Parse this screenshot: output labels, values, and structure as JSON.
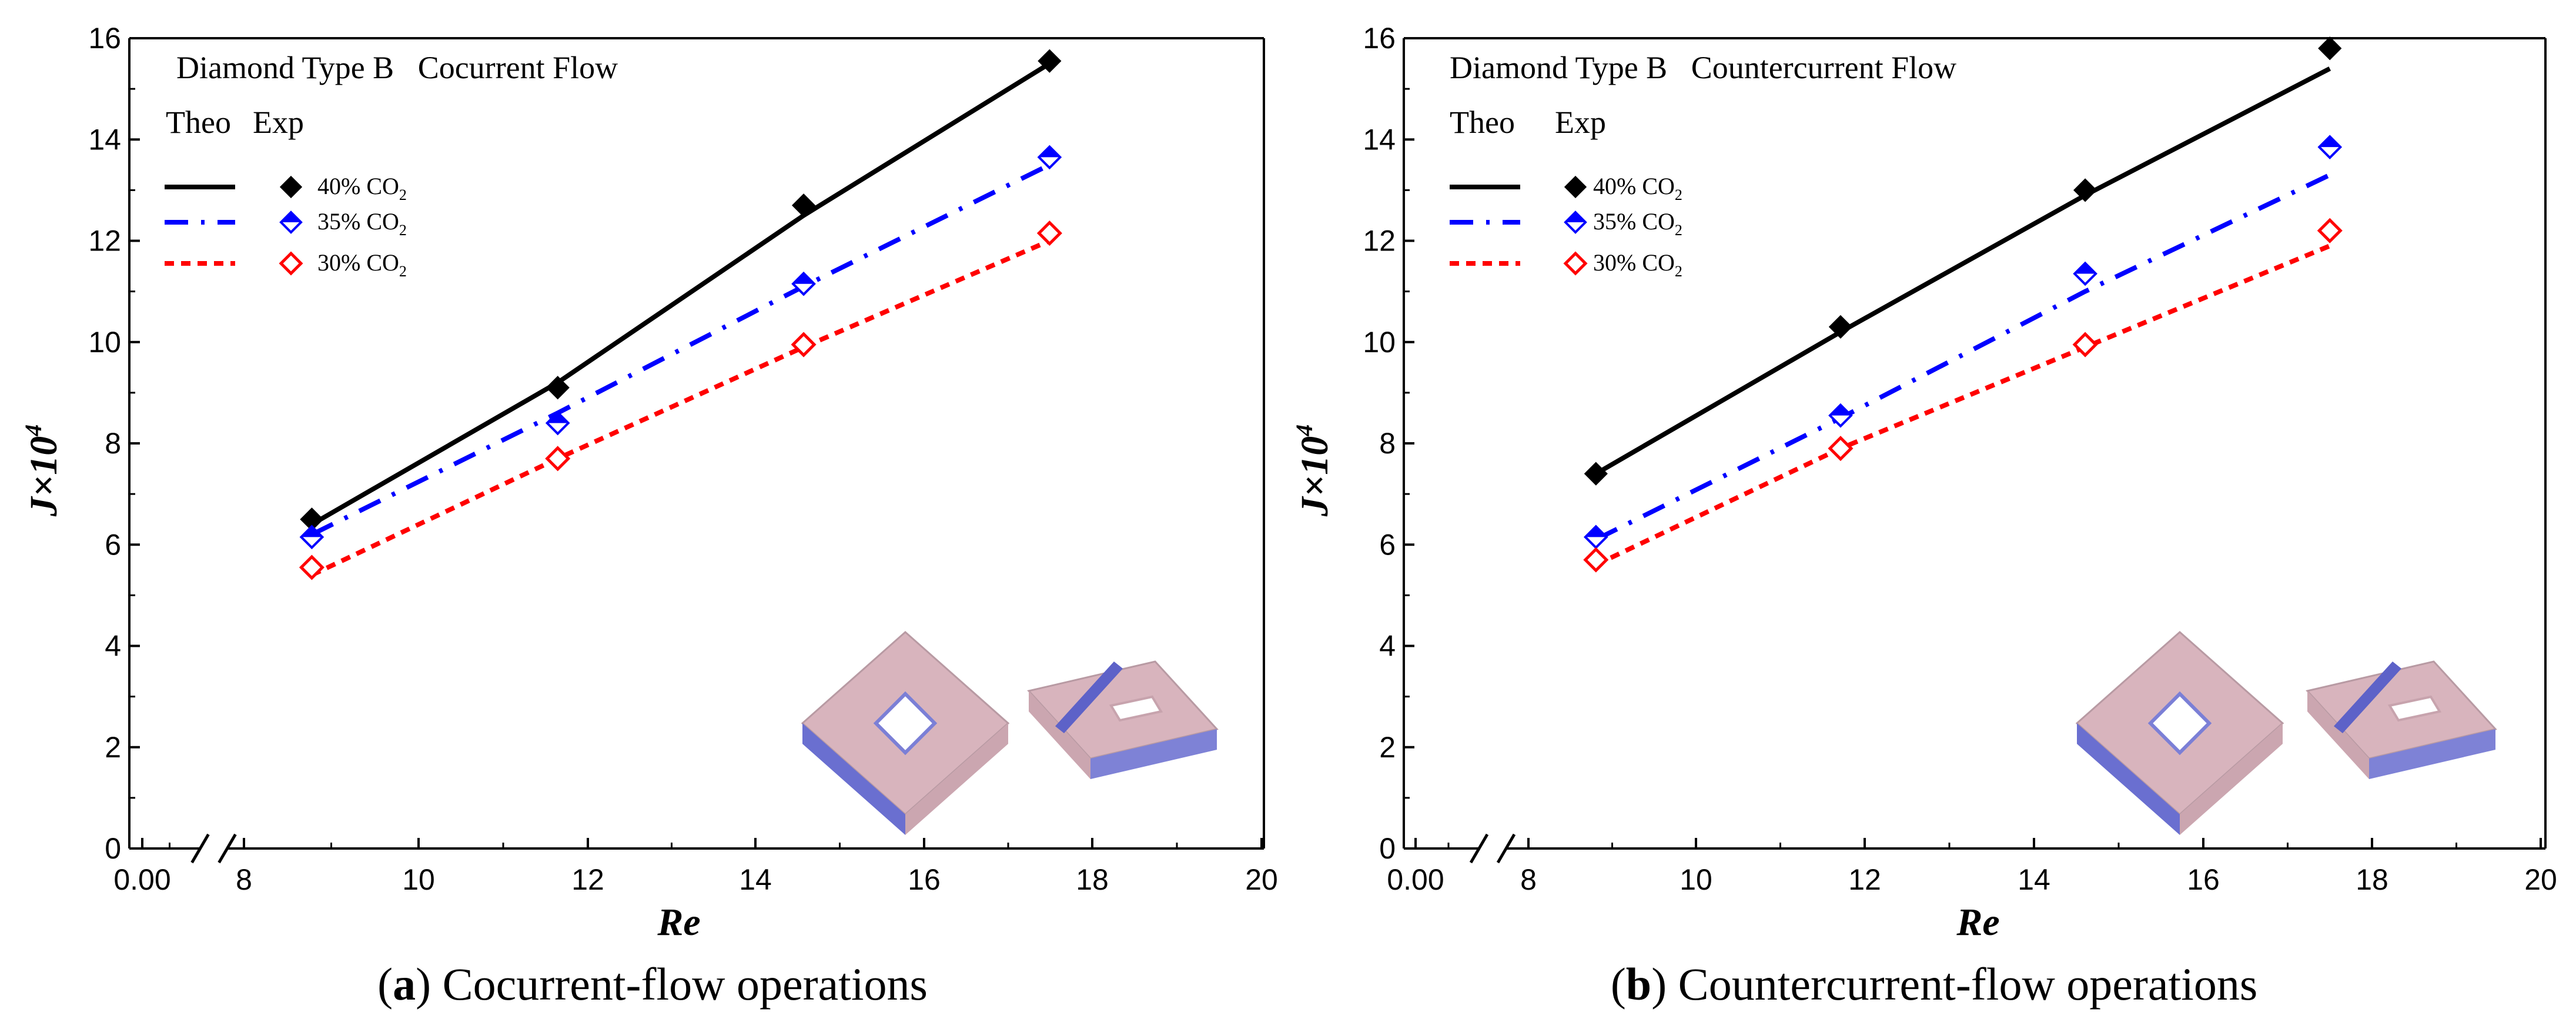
{
  "chart_data": [
    {
      "type": "line",
      "panel_letter": "a",
      "caption": "Cocurrent-flow operations",
      "title": "Diamond Type B   Cocurrent Flow",
      "legend_header": {
        "theo": "Theo",
        "exp": "Exp"
      },
      "xlabel": "Re",
      "ylabel": "J×10",
      "ylabel_exp": "4",
      "xlim": [
        7,
        20
      ],
      "ylim": [
        0,
        16
      ],
      "xticks": [
        "0.00",
        "8",
        "10",
        "12",
        "14",
        "16",
        "18",
        "20"
      ],
      "yticks": [
        "0",
        "2",
        "4",
        "6",
        "8",
        "10",
        "12",
        "14",
        "16"
      ],
      "axis_break": true,
      "series": [
        {
          "name": "40% CO2",
          "label": "40% CO",
          "sub": "2",
          "color": "#000000",
          "marker": "diamond-filled",
          "theo": {
            "x": [
              8.8,
              11.7,
              14.6,
              17.5
            ],
            "y": [
              6.4,
              9.2,
              12.5,
              15.5
            ]
          },
          "exp": {
            "x": [
              8.8,
              11.7,
              14.6,
              17.5
            ],
            "y": [
              6.5,
              9.1,
              12.7,
              15.55
            ]
          }
        },
        {
          "name": "35% CO2",
          "label": "35% CO",
          "sub": "2",
          "color": "#0000ff",
          "marker": "diamond-half",
          "theo": {
            "x": [
              8.8,
              11.7,
              14.6,
              17.5
            ],
            "y": [
              6.2,
              8.6,
              11.1,
              13.5
            ]
          },
          "exp": {
            "x": [
              8.8,
              11.7,
              14.6,
              17.5
            ],
            "y": [
              6.15,
              8.4,
              11.15,
              13.65
            ]
          }
        },
        {
          "name": "30% CO2",
          "label": "30% CO",
          "sub": "2",
          "color": "#ff0000",
          "marker": "diamond-open",
          "theo": {
            "x": [
              8.8,
              11.7,
              14.6,
              17.5
            ],
            "y": [
              5.4,
              7.7,
              9.9,
              12.0
            ]
          },
          "exp": {
            "x": [
              8.8,
              11.7,
              14.6,
              17.5
            ],
            "y": [
              5.55,
              7.7,
              9.95,
              12.15
            ]
          }
        }
      ]
    },
    {
      "type": "line",
      "panel_letter": "b",
      "caption": "Countercurrent-flow operations",
      "title": "Diamond Type B   Countercurrent Flow",
      "legend_header": {
        "theo": "Theo",
        "exp": "Exp"
      },
      "xlabel": "Re",
      "ylabel": "J×10",
      "ylabel_exp": "4",
      "xlim": [
        7,
        20
      ],
      "ylim": [
        0,
        16
      ],
      "xticks": [
        "0.00",
        "8",
        "10",
        "12",
        "14",
        "16",
        "18",
        "20"
      ],
      "yticks": [
        "0",
        "2",
        "4",
        "6",
        "8",
        "10",
        "12",
        "14",
        "16"
      ],
      "axis_break": true,
      "series": [
        {
          "name": "40% CO2",
          "label": "40% CO",
          "sub": "2",
          "color": "#000000",
          "marker": "diamond-filled",
          "theo": {
            "x": [
              8.8,
              11.7,
              14.6,
              17.5
            ],
            "y": [
              7.4,
              10.2,
              12.9,
              15.4
            ]
          },
          "exp": {
            "x": [
              8.8,
              11.7,
              14.6,
              17.5
            ],
            "y": [
              7.4,
              10.3,
              13.0,
              15.8
            ]
          }
        },
        {
          "name": "35% CO2",
          "label": "35% CO",
          "sub": "2",
          "color": "#0000ff",
          "marker": "diamond-half",
          "theo": {
            "x": [
              8.8,
              11.7,
              14.6,
              17.5
            ],
            "y": [
              6.1,
              8.5,
              11.0,
              13.3
            ]
          },
          "exp": {
            "x": [
              8.8,
              11.7,
              14.6,
              17.5
            ],
            "y": [
              6.15,
              8.55,
              11.35,
              13.85
            ]
          }
        },
        {
          "name": "30% CO2",
          "label": "30% CO",
          "sub": "2",
          "color": "#ff0000",
          "marker": "diamond-open",
          "theo": {
            "x": [
              8.8,
              11.7,
              14.6,
              17.5
            ],
            "y": [
              5.6,
              7.9,
              9.9,
              11.9
            ]
          },
          "exp": {
            "x": [
              8.8,
              11.7,
              14.6,
              17.5
            ],
            "y": [
              5.7,
              7.9,
              9.95,
              12.2
            ]
          }
        }
      ]
    }
  ]
}
